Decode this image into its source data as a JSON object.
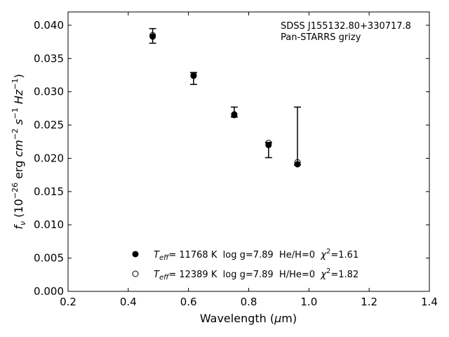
{
  "chart_data": {
    "type": "scatter",
    "xlim": [
      0.2,
      1.4
    ],
    "ylim": [
      0.0,
      0.042
    ],
    "xticks": [
      "0.2",
      "0.4",
      "0.6",
      "0.8",
      "1.0",
      "1.2",
      "1.4"
    ],
    "yticks": [
      "0.000",
      "0.005",
      "0.010",
      "0.015",
      "0.020",
      "0.025",
      "0.030",
      "0.035",
      "0.040"
    ],
    "xtick_values": [
      0.2,
      0.4,
      0.6,
      0.8,
      1.0,
      1.2,
      1.4
    ],
    "ytick_values": [
      0.0,
      0.005,
      0.01,
      0.015,
      0.02,
      0.025,
      0.03,
      0.035,
      0.04
    ],
    "xlabel": "Wavelength (μm)",
    "ylabel": "f_ν (10^-26 erg cm^-2 s^-1 Hz^-1)",
    "annotation_lines": [
      "SDSS J155132.80+330717.8",
      "Pan-STARRS grizy"
    ],
    "observed": {
      "x": [
        0.481,
        0.617,
        0.752,
        0.866,
        0.962
      ],
      "y": [
        0.0384,
        0.032,
        0.0265,
        0.0222,
        0.0192
      ],
      "yerr_low": [
        0.0011,
        0.0009,
        0.0003,
        0.0021,
        0.0002
      ],
      "yerr_high": [
        0.0011,
        0.0009,
        0.0012,
        0.0002,
        0.0085
      ]
    },
    "series": [
      {
        "name": "T_eff= 11768 K  log g=7.89  He/H=0  χ²=1.61",
        "marker": "filled-circle",
        "x": [
          0.481,
          0.617,
          0.752,
          0.866,
          0.962
        ],
        "y": [
          0.0383,
          0.0324,
          0.0265,
          0.022,
          0.0191
        ]
      },
      {
        "name": "T_eff= 12389 K  log g=7.89  H/He=0  χ²=1.82",
        "marker": "open-circle",
        "x": [
          0.481,
          0.617,
          0.752,
          0.866,
          0.962
        ],
        "y": [
          0.0385,
          0.0325,
          0.0266,
          0.0223,
          0.0194
        ]
      }
    ],
    "legend": [
      {
        "teff_label": "T",
        "teff_sub": "eff",
        "rest": "= 11768 K  log g=7.89  He/H=0  ",
        "chi": "χ",
        "chi_sup": "2",
        "chi_val": "=1.61"
      },
      {
        "teff_label": "T",
        "teff_sub": "eff",
        "rest": "= 12389 K  log g=7.89  H/He=0  ",
        "chi": "χ",
        "chi_sup": "2",
        "chi_val": "=1.82"
      }
    ],
    "legend_placement": "lower-center",
    "grid": false
  }
}
